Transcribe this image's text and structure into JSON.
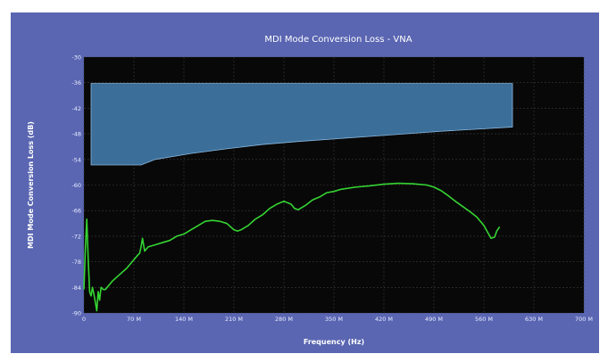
{
  "chart_data": {
    "type": "line",
    "title": "MDI Mode Conversion Loss - VNA",
    "xlabel": "Frequency (Hz)",
    "ylabel": "MDI Mode Conversion Loss (dB)",
    "xlim": [
      0,
      700
    ],
    "ylim": [
      -90,
      -30
    ],
    "x_ticks": [
      0,
      70,
      140,
      210,
      280,
      350,
      420,
      490,
      560,
      630,
      700
    ],
    "x_tick_labels": [
      "0",
      "70 M",
      "140 M",
      "210 M",
      "280 M",
      "350 M",
      "420 M",
      "490 M",
      "560 M",
      "630 M",
      "700 M"
    ],
    "y_ticks": [
      -30,
      -36,
      -42,
      -48,
      -54,
      -60,
      -66,
      -72,
      -78,
      -84,
      -90
    ],
    "y_tick_labels": [
      "-30",
      "-36",
      "-42",
      "-48",
      "-54",
      "-60",
      "-66",
      "-72",
      "-78",
      "-84",
      "-90"
    ],
    "grid": true,
    "legend": "none",
    "colors": {
      "panel_background": "#5a66b2",
      "plot_background": "#080808",
      "limit_fill": "#3b6e98",
      "limit_edge": "#8ab8e0",
      "measured_line": "#35d432",
      "grid": "#3a3a3a"
    },
    "limit_region": {
      "top": [
        [
          10,
          -36.2
        ],
        [
          600,
          -36.2
        ]
      ],
      "bottom": [
        [
          10,
          -55.3
        ],
        [
          80,
          -55.3
        ],
        [
          100,
          -54.0
        ],
        [
          150,
          -52.6
        ],
        [
          200,
          -51.5
        ],
        [
          250,
          -50.5
        ],
        [
          300,
          -49.8
        ],
        [
          350,
          -49.2
        ],
        [
          400,
          -48.6
        ],
        [
          450,
          -48.0
        ],
        [
          500,
          -47.4
        ],
        [
          550,
          -46.9
        ],
        [
          600,
          -46.4
        ]
      ]
    },
    "series": [
      {
        "x": [
          0,
          2,
          4,
          6,
          8,
          10,
          12,
          15,
          18,
          20,
          22,
          24,
          27,
          30,
          40,
          50,
          60,
          70,
          75,
          78,
          80,
          82,
          85,
          90,
          100,
          110,
          120,
          130,
          140,
          150,
          160,
          170,
          180,
          190,
          200,
          210,
          215,
          220,
          230,
          240,
          250,
          260,
          270,
          280,
          290,
          295,
          300,
          310,
          320,
          330,
          340,
          350,
          360,
          380,
          400,
          420,
          440,
          460,
          480,
          490,
          500,
          510,
          520,
          530,
          540,
          550,
          560,
          565,
          570,
          575,
          578,
          582
        ],
        "y": [
          -84.5,
          -75.0,
          -68.0,
          -77.5,
          -85.0,
          -86.0,
          -84.0,
          -86.5,
          -89.5,
          -85.0,
          -87.0,
          -84.0,
          -84.5,
          -84.5,
          -82.5,
          -81.0,
          -79.5,
          -77.5,
          -76.5,
          -76.0,
          -74.5,
          -72.5,
          -75.5,
          -74.5,
          -74.0,
          -73.5,
          -73.0,
          -72.0,
          -71.5,
          -70.5,
          -69.5,
          -68.5,
          -68.3,
          -68.5,
          -69.0,
          -70.5,
          -70.8,
          -70.5,
          -69.5,
          -68.0,
          -67.0,
          -65.5,
          -64.5,
          -63.8,
          -64.5,
          -65.5,
          -65.8,
          -64.8,
          -63.5,
          -62.8,
          -61.8,
          -61.5,
          -61.0,
          -60.5,
          -60.2,
          -59.8,
          -59.6,
          -59.7,
          -60.0,
          -60.5,
          -61.3,
          -62.5,
          -63.8,
          -65.0,
          -66.2,
          -67.5,
          -69.5,
          -71.0,
          -72.5,
          -72.2,
          -70.8,
          -69.8
        ]
      }
    ]
  }
}
